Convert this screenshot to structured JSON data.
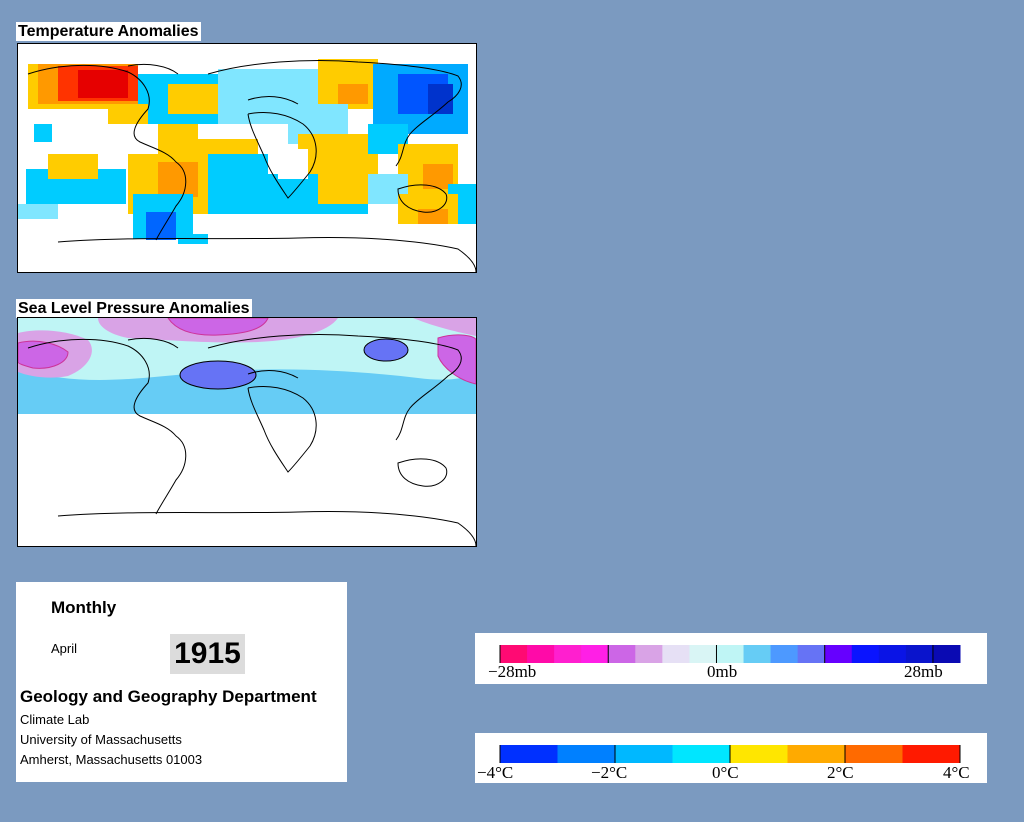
{
  "temperature_map": {
    "title": "Temperature Anomalies"
  },
  "pressure_map": {
    "title": "Sea Level Pressure Anomalies"
  },
  "info": {
    "period": "Monthly",
    "month": "April",
    "year": "1915",
    "department": "Geology and Geography Department",
    "lines": [
      "Climate Lab",
      "University of Massachusetts",
      "Amherst, Massachusetts 01003"
    ]
  },
  "pressure_legend": {
    "labels": [
      "−28mb",
      "0mb",
      "28mb"
    ],
    "colors": [
      "#ff0a73",
      "#ff0aa8",
      "#ff1fcf",
      "#ff1fe6",
      "#cc66e6",
      "#d9a3e6",
      "#e6e0f5",
      "#d9f5f5",
      "#bff5f5",
      "#66ccf5",
      "#4d99ff",
      "#6673f5",
      "#6600ff",
      "#0a14ff",
      "#0a14e6",
      "#0a14cc",
      "#0a0ab3"
    ]
  },
  "temperature_legend": {
    "labels": [
      "−4°C",
      "−2°C",
      "0°C",
      "2°C",
      "4°C"
    ],
    "colors": [
      "#0030ff",
      "#0080ff",
      "#00b8ff",
      "#00e6ff",
      "#ffe600",
      "#ffaa00",
      "#ff6a00",
      "#ff1a00"
    ]
  }
}
